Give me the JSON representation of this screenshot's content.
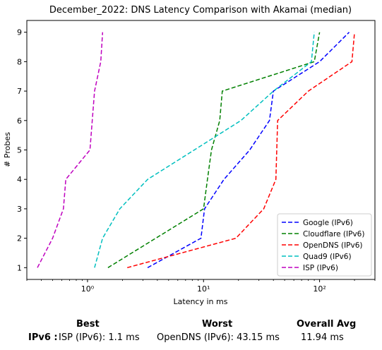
{
  "chart_data": {
    "type": "line",
    "title": "December_2022: DNS Latency Comparison with Akamai (median)",
    "xlabel": "Latency in ms",
    "ylabel": "# Probes",
    "xscale": "log",
    "xlim": [
      0.3,
      300
    ],
    "ylim": [
      0.6,
      9.4
    ],
    "x_tick_labels": [
      "10⁰",
      "10¹",
      "10²"
    ],
    "y_tick_labels": [
      "1",
      "2",
      "3",
      "4",
      "5",
      "6",
      "7",
      "8",
      "9"
    ],
    "grid": false,
    "legend_position": "lower-right",
    "series": [
      {
        "name": "Google (IPv6)",
        "color": "#0000ff",
        "style": "dashed",
        "x": [
          3.3,
          9.5,
          10.2,
          15,
          25,
          37,
          40,
          100,
          180
        ],
        "y": [
          1,
          2,
          3,
          4,
          5,
          6,
          7,
          8,
          9
        ]
      },
      {
        "name": "Cloudflare (IPv6)",
        "color": "#008000",
        "style": "dashed",
        "x": [
          1.5,
          10,
          10.8,
          11.7,
          13.8,
          14.5,
          90,
          100
        ],
        "y": [
          1,
          3,
          4,
          5,
          6,
          7,
          8,
          9
        ]
      },
      {
        "name": "OpenDNS (IPv6)",
        "color": "#ff0000",
        "style": "dashed",
        "x": [
          2.2,
          19,
          33,
          42,
          43.5,
          80,
          190,
          200
        ],
        "y": [
          1,
          2,
          3,
          4,
          6,
          7,
          8,
          9
        ]
      },
      {
        "name": "Quad9 (IPv6)",
        "color": "#00bfbf",
        "style": "dashed",
        "x": [
          1.15,
          1.35,
          1.9,
          3.3,
          21,
          40,
          85,
          90
        ],
        "y": [
          1,
          2,
          3,
          4,
          6,
          7,
          8,
          9
        ]
      },
      {
        "name": "ISP (IPv6)",
        "color": "#bf00bf",
        "style": "dashed",
        "x": [
          0.37,
          0.5,
          0.62,
          0.65,
          1.05,
          1.15,
          1.3,
          1.35
        ],
        "y": [
          1,
          2,
          3,
          4,
          5,
          7,
          8,
          9
        ]
      }
    ]
  },
  "summary": {
    "best_header": "Best",
    "worst_header": "Worst",
    "avg_header": "Overall Avg",
    "row_label": "IPv6 :",
    "best_value": "ISP (IPv6): 1.1 ms",
    "worst_value": "OpenDNS (IPv6): 43.15 ms",
    "avg_value": "11.94 ms"
  }
}
